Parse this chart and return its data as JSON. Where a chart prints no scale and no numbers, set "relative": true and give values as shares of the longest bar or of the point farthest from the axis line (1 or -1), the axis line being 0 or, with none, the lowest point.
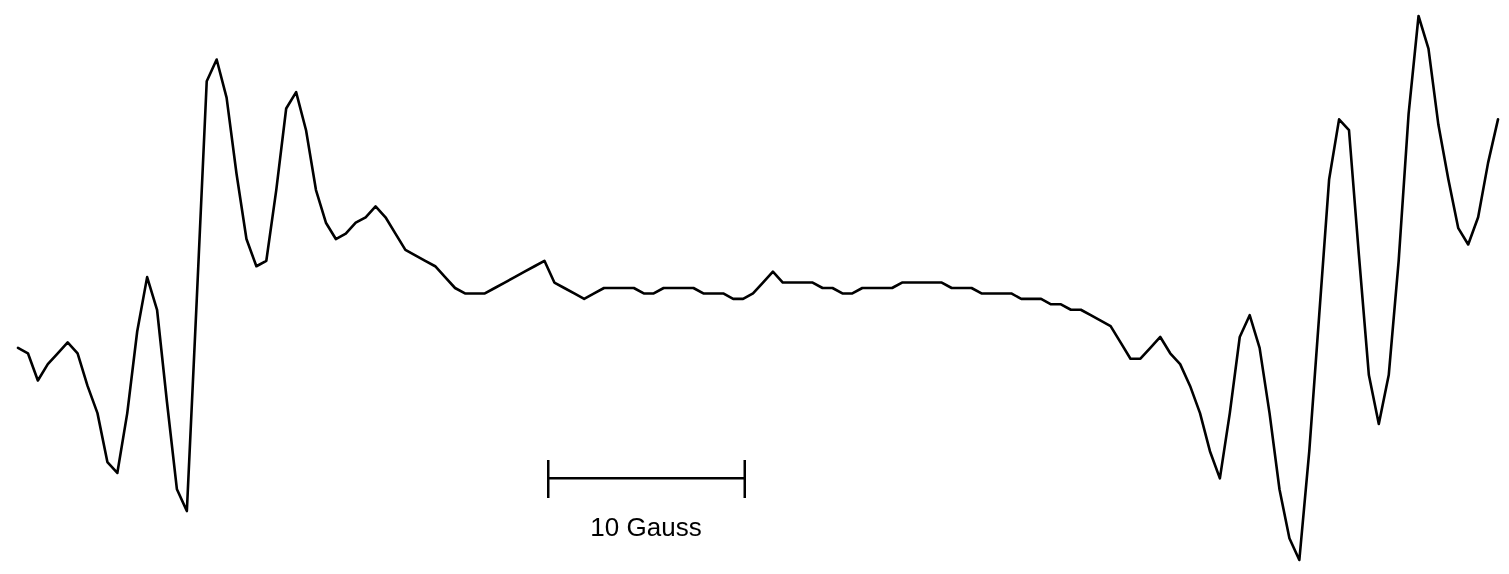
{
  "chart_data": {
    "type": "line",
    "relative": true,
    "color": "#000000",
    "annotations": [
      "10 Gauss"
    ],
    "categories": [
      null,
      null,
      null,
      null,
      null,
      null,
      null,
      null,
      null,
      null,
      null,
      null,
      null,
      null,
      null,
      null,
      null,
      null,
      null,
      null,
      null,
      null,
      null,
      null,
      null,
      null,
      null,
      null,
      null,
      null,
      null,
      null,
      null,
      null,
      null,
      null,
      null,
      null,
      null,
      null,
      null,
      null,
      null,
      null,
      null,
      null,
      null,
      null,
      null,
      null,
      null,
      null,
      null,
      null,
      null,
      null,
      null,
      null,
      null,
      null,
      null,
      null,
      null,
      null,
      null,
      null,
      null,
      null,
      null,
      null,
      null,
      null,
      null,
      null,
      null,
      null,
      null,
      null,
      null,
      null,
      null,
      null,
      null,
      null,
      null,
      null,
      null,
      null,
      null,
      null,
      null,
      null,
      null,
      null,
      null,
      null,
      null,
      null,
      null,
      null,
      null,
      null,
      null,
      null,
      null,
      null,
      null,
      null,
      null,
      null,
      null,
      null,
      null,
      null,
      null,
      null,
      null,
      null,
      null,
      null,
      null,
      null,
      null,
      null,
      null,
      null,
      null,
      null,
      null,
      null,
      null,
      null,
      null,
      null,
      null,
      null,
      null,
      null,
      null,
      null,
      null,
      null,
      null,
      null,
      null,
      null,
      null,
      null,
      null,
      null
    ],
    "values": [
      0.39,
      0.38,
      0.33,
      0.36,
      0.38,
      0.4,
      0.38,
      0.32,
      0.27,
      0.18,
      0.16,
      0.27,
      0.42,
      0.52,
      0.46,
      0.29,
      0.13,
      0.09,
      0.48,
      0.88,
      0.92,
      0.85,
      0.71,
      0.59,
      0.54,
      0.55,
      0.68,
      0.83,
      0.86,
      0.79,
      0.68,
      0.62,
      0.59,
      0.6,
      0.62,
      0.63,
      0.65,
      0.63,
      0.6,
      0.57,
      0.56,
      0.55,
      0.54,
      0.52,
      0.5,
      0.49,
      0.49,
      0.49,
      0.5,
      0.51,
      0.52,
      0.53,
      0.54,
      0.55,
      0.51,
      0.5,
      0.49,
      0.48,
      0.49,
      0.5,
      0.5,
      0.5,
      0.5,
      0.49,
      0.49,
      0.5,
      0.5,
      0.5,
      0.5,
      0.49,
      0.49,
      0.49,
      0.48,
      0.48,
      0.49,
      0.51,
      0.53,
      0.51,
      0.51,
      0.51,
      0.51,
      0.5,
      0.5,
      0.49,
      0.49,
      0.5,
      0.5,
      0.5,
      0.5,
      0.51,
      0.51,
      0.51,
      0.51,
      0.51,
      0.5,
      0.5,
      0.5,
      0.49,
      0.49,
      0.49,
      0.49,
      0.48,
      0.48,
      0.48,
      0.47,
      0.47,
      0.46,
      0.46,
      0.45,
      0.44,
      0.43,
      0.4,
      0.37,
      0.37,
      0.39,
      0.41,
      0.38,
      0.36,
      0.32,
      0.27,
      0.2,
      0.15,
      0.27,
      0.41,
      0.45,
      0.39,
      0.27,
      0.13,
      0.04,
      0,
      0.2,
      0.45,
      0.7,
      0.81,
      0.79,
      0.56,
      0.34,
      0.25,
      0.34,
      0.55,
      0.82,
      1,
      0.94,
      0.8,
      0.7,
      0.61,
      0.58,
      0.63,
      0.73,
      0.81
    ]
  }
}
